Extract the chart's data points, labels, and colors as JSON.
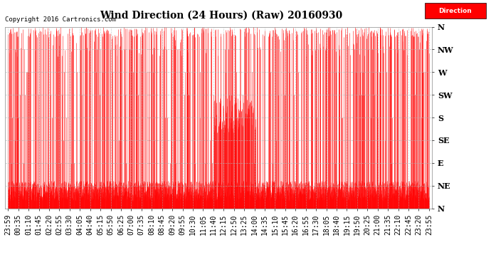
{
  "title": "Wind Direction (24 Hours) (Raw) 20160930",
  "copyright": "Copyright 2016 Cartronics.com",
  "bg_color": "#ffffff",
  "plot_bg_color": "#ffffff",
  "line_color": "#ff0000",
  "grid_color": "#b0b0b0",
  "ytick_labels": [
    "N",
    "NE",
    "E",
    "SE",
    "S",
    "SW",
    "W",
    "NW",
    "N"
  ],
  "ytick_values": [
    0,
    45,
    90,
    135,
    180,
    225,
    270,
    315,
    360
  ],
  "ylim": [
    0,
    360
  ],
  "legend_label": "Direction",
  "legend_bg": "#ff0000",
  "legend_text_color": "#ffffff",
  "title_fontsize": 10,
  "tick_fontsize": 7,
  "copyright_fontsize": 6.5,
  "xtick_labels": [
    "23:59",
    "00:35",
    "01:10",
    "01:45",
    "02:20",
    "02:55",
    "03:30",
    "04:05",
    "04:40",
    "05:15",
    "05:50",
    "06:25",
    "07:00",
    "07:35",
    "08:10",
    "08:45",
    "09:20",
    "09:55",
    "10:30",
    "11:05",
    "11:40",
    "12:15",
    "12:50",
    "13:25",
    "14:00",
    "14:35",
    "15:10",
    "15:45",
    "16:20",
    "16:55",
    "17:30",
    "18:05",
    "18:40",
    "19:15",
    "19:50",
    "20:25",
    "21:00",
    "21:35",
    "22:10",
    "22:45",
    "23:20",
    "23:55"
  ]
}
